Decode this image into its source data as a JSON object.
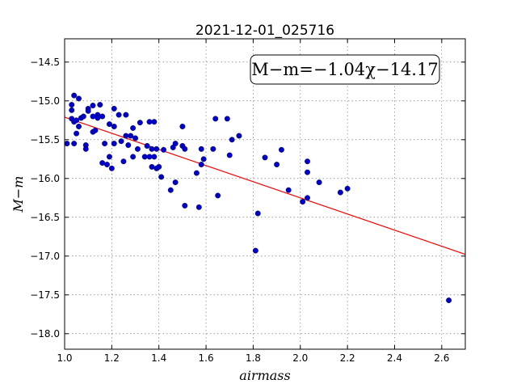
{
  "chart_data": {
    "type": "scatter",
    "title": "2021-12-01_025716",
    "xlabel": "airmass",
    "ylabel": "M−m",
    "xlim": [
      1.0,
      2.7
    ],
    "ylim": [
      -18.2,
      -14.2
    ],
    "y_inverted": true,
    "grid": true,
    "xticks": [
      "1.0",
      "1.2",
      "1.4",
      "1.6",
      "1.8",
      "2.0",
      "2.2",
      "2.4",
      "2.6"
    ],
    "yticks": [
      "−14.5",
      "−15.0",
      "−15.5",
      "−16.0",
      "−16.5",
      "−17.0",
      "−17.5",
      "−18.0"
    ],
    "annotation": "M−m=−1.04χ−14.17",
    "fit": {
      "slope": -1.04,
      "intercept": -14.17,
      "color": "#ff0000"
    },
    "marker_color": "#0000cc",
    "points": [
      [
        1.01,
        -15.55
      ],
      [
        1.03,
        -15.05
      ],
      [
        1.03,
        -15.12
      ],
      [
        1.03,
        -15.23
      ],
      [
        1.04,
        -15.27
      ],
      [
        1.04,
        -15.55
      ],
      [
        1.04,
        -14.93
      ],
      [
        1.05,
        -15.25
      ],
      [
        1.05,
        -15.42
      ],
      [
        1.06,
        -14.97
      ],
      [
        1.06,
        -15.33
      ],
      [
        1.07,
        -15.22
      ],
      [
        1.08,
        -15.2
      ],
      [
        1.09,
        -15.57
      ],
      [
        1.09,
        -15.62
      ],
      [
        1.1,
        -15.1
      ],
      [
        1.1,
        -15.13
      ],
      [
        1.12,
        -15.2
      ],
      [
        1.12,
        -15.4
      ],
      [
        1.12,
        -15.06
      ],
      [
        1.13,
        -15.38
      ],
      [
        1.14,
        -15.18
      ],
      [
        1.14,
        -15.22
      ],
      [
        1.15,
        -15.05
      ],
      [
        1.16,
        -15.2
      ],
      [
        1.16,
        -15.8
      ],
      [
        1.17,
        -15.55
      ],
      [
        1.18,
        -15.82
      ],
      [
        1.19,
        -15.3
      ],
      [
        1.19,
        -15.72
      ],
      [
        1.2,
        -15.87
      ],
      [
        1.21,
        -15.1
      ],
      [
        1.21,
        -15.33
      ],
      [
        1.21,
        -15.55
      ],
      [
        1.23,
        -15.18
      ],
      [
        1.24,
        -15.52
      ],
      [
        1.25,
        -15.78
      ],
      [
        1.26,
        -15.18
      ],
      [
        1.26,
        -15.45
      ],
      [
        1.27,
        -15.57
      ],
      [
        1.28,
        -15.45
      ],
      [
        1.29,
        -15.72
      ],
      [
        1.29,
        -15.35
      ],
      [
        1.3,
        -15.48
      ],
      [
        1.31,
        -15.62
      ],
      [
        1.32,
        -15.28
      ],
      [
        1.34,
        -15.72
      ],
      [
        1.35,
        -15.58
      ],
      [
        1.36,
        -15.72
      ],
      [
        1.36,
        -15.27
      ],
      [
        1.37,
        -15.85
      ],
      [
        1.37,
        -15.62
      ],
      [
        1.38,
        -15.27
      ],
      [
        1.38,
        -15.72
      ],
      [
        1.39,
        -15.62
      ],
      [
        1.39,
        -15.87
      ],
      [
        1.4,
        -15.85
      ],
      [
        1.41,
        -15.98
      ],
      [
        1.42,
        -15.63
      ],
      [
        1.45,
        -16.15
      ],
      [
        1.46,
        -15.6
      ],
      [
        1.47,
        -15.55
      ],
      [
        1.47,
        -16.05
      ],
      [
        1.5,
        -15.33
      ],
      [
        1.5,
        -15.58
      ],
      [
        1.51,
        -15.62
      ],
      [
        1.51,
        -16.35
      ],
      [
        1.56,
        -15.93
      ],
      [
        1.57,
        -16.37
      ],
      [
        1.58,
        -15.62
      ],
      [
        1.58,
        -15.82
      ],
      [
        1.59,
        -15.75
      ],
      [
        1.63,
        -15.62
      ],
      [
        1.64,
        -15.23
      ],
      [
        1.65,
        -16.22
      ],
      [
        1.69,
        -15.23
      ],
      [
        1.7,
        -15.7
      ],
      [
        1.71,
        -15.5
      ],
      [
        1.74,
        -15.45
      ],
      [
        1.81,
        -16.93
      ],
      [
        1.82,
        -16.45
      ],
      [
        1.85,
        -15.73
      ],
      [
        1.9,
        -15.82
      ],
      [
        1.92,
        -15.63
      ],
      [
        1.95,
        -16.15
      ],
      [
        2.01,
        -16.3
      ],
      [
        2.03,
        -16.25
      ],
      [
        2.03,
        -15.78
      ],
      [
        2.03,
        -15.92
      ],
      [
        2.08,
        -16.05
      ],
      [
        2.17,
        -16.18
      ],
      [
        2.2,
        -16.13
      ],
      [
        2.63,
        -17.57
      ]
    ]
  }
}
